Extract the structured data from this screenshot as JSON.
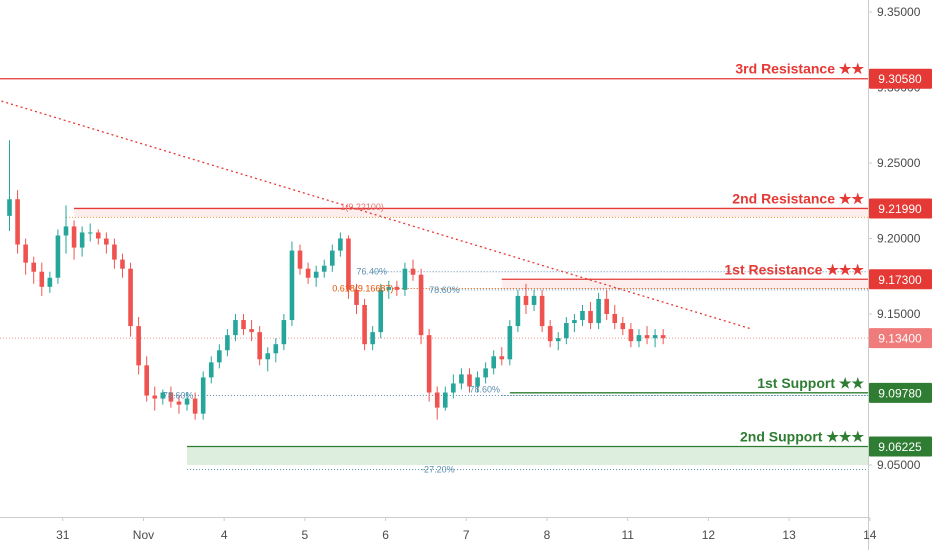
{
  "chart_data": {
    "type": "candlestick",
    "ylim": [
      9.035,
      9.36
    ],
    "grid": false,
    "y_ticks": [
      "9.35000",
      "9.30000",
      "9.25000",
      "9.20000",
      "9.15000",
      "9.10000",
      "9.05000"
    ],
    "x_ticks": [
      {
        "label": "31",
        "index": 4
      },
      {
        "label": "Nov",
        "index": 14
      },
      {
        "label": "4",
        "index": 24
      },
      {
        "label": "5",
        "index": 34
      },
      {
        "label": "6",
        "index": 44
      },
      {
        "label": "7",
        "index": 54
      },
      {
        "label": "8",
        "index": 64
      },
      {
        "label": "11",
        "index": 74
      },
      {
        "label": "12",
        "index": 84
      },
      {
        "label": "13",
        "index": 94
      },
      {
        "label": "14",
        "index": 104
      }
    ],
    "candles": [
      [
        9.215,
        9.265,
        9.205,
        9.226
      ],
      [
        9.226,
        9.232,
        9.19,
        9.196
      ],
      [
        9.196,
        9.2,
        9.176,
        9.184
      ],
      [
        9.184,
        9.188,
        9.17,
        9.178
      ],
      [
        9.178,
        9.184,
        9.162,
        9.168
      ],
      [
        9.168,
        9.178,
        9.164,
        9.174
      ],
      [
        9.174,
        9.206,
        9.17,
        9.202
      ],
      [
        9.202,
        9.222,
        9.19,
        9.208
      ],
      [
        9.208,
        9.212,
        9.186,
        9.194
      ],
      [
        9.194,
        9.208,
        9.188,
        9.204
      ],
      [
        9.204,
        9.21,
        9.198,
        9.204
      ],
      [
        9.204,
        9.206,
        9.196,
        9.2
      ],
      [
        9.2,
        9.204,
        9.19,
        9.196
      ],
      [
        9.196,
        9.2,
        9.18,
        9.186
      ],
      [
        9.186,
        9.19,
        9.174,
        9.18
      ],
      [
        9.18,
        9.184,
        9.135,
        9.142
      ],
      [
        9.142,
        9.148,
        9.11,
        9.116
      ],
      [
        9.116,
        9.122,
        9.092,
        9.096
      ],
      [
        9.096,
        9.102,
        9.086,
        9.094
      ],
      [
        9.094,
        9.1,
        9.09,
        9.098
      ],
      [
        9.098,
        9.102,
        9.088,
        9.092
      ],
      [
        9.092,
        9.096,
        9.084,
        9.09
      ],
      [
        9.09,
        9.098,
        9.086,
        9.094
      ],
      [
        9.094,
        9.098,
        9.08,
        9.084
      ],
      [
        9.084,
        9.112,
        9.08,
        9.108
      ],
      [
        9.108,
        9.122,
        9.104,
        9.118
      ],
      [
        9.118,
        9.13,
        9.114,
        9.126
      ],
      [
        9.126,
        9.14,
        9.122,
        9.136
      ],
      [
        9.136,
        9.15,
        9.132,
        9.146
      ],
      [
        9.146,
        9.15,
        9.136,
        9.14
      ],
      [
        9.14,
        9.146,
        9.132,
        9.138
      ],
      [
        9.138,
        9.142,
        9.116,
        9.12
      ],
      [
        9.12,
        9.128,
        9.112,
        9.124
      ],
      [
        9.124,
        9.134,
        9.118,
        9.13
      ],
      [
        9.13,
        9.15,
        9.126,
        9.146
      ],
      [
        9.146,
        9.198,
        9.142,
        9.192
      ],
      [
        9.192,
        9.196,
        9.176,
        9.18
      ],
      [
        9.18,
        9.184,
        9.17,
        9.174
      ],
      [
        9.174,
        9.182,
        9.168,
        9.178
      ],
      [
        9.178,
        9.186,
        9.174,
        9.182
      ],
      [
        9.182,
        9.196,
        9.178,
        9.192
      ],
      [
        9.192,
        9.204,
        9.188,
        9.2
      ],
      [
        9.2,
        9.202,
        9.16,
        9.166
      ],
      [
        9.166,
        9.17,
        9.15,
        9.156
      ],
      [
        9.156,
        9.16,
        9.126,
        9.13
      ],
      [
        9.13,
        9.142,
        9.126,
        9.138
      ],
      [
        9.138,
        9.17,
        9.134,
        9.166
      ],
      [
        9.166,
        9.172,
        9.16,
        9.168
      ],
      [
        9.168,
        9.172,
        9.162,
        9.166
      ],
      [
        9.166,
        9.184,
        9.162,
        9.18
      ],
      [
        9.18,
        9.186,
        9.172,
        9.176
      ],
      [
        9.176,
        9.18,
        9.13,
        9.136
      ],
      [
        9.136,
        9.14,
        9.092,
        9.098
      ],
      [
        9.098,
        9.102,
        9.08,
        9.088
      ],
      [
        9.088,
        9.102,
        9.086,
        9.098
      ],
      [
        9.098,
        9.11,
        9.094,
        9.104
      ],
      [
        9.104,
        9.114,
        9.1,
        9.11
      ],
      [
        9.11,
        9.114,
        9.098,
        9.102
      ],
      [
        9.102,
        9.112,
        9.098,
        9.108
      ],
      [
        9.108,
        9.118,
        9.104,
        9.114
      ],
      [
        9.114,
        9.126,
        9.11,
        9.122
      ],
      [
        9.122,
        9.128,
        9.116,
        9.12
      ],
      [
        9.12,
        9.146,
        9.116,
        9.142
      ],
      [
        9.142,
        9.166,
        9.138,
        9.162
      ],
      [
        9.162,
        9.17,
        9.15,
        9.156
      ],
      [
        9.156,
        9.166,
        9.152,
        9.162
      ],
      [
        9.162,
        9.166,
        9.138,
        9.142
      ],
      [
        9.142,
        9.146,
        9.128,
        9.132
      ],
      [
        9.132,
        9.138,
        9.126,
        9.134
      ],
      [
        9.134,
        9.148,
        9.13,
        9.144
      ],
      [
        9.144,
        9.15,
        9.138,
        9.146
      ],
      [
        9.146,
        9.156,
        9.142,
        9.152
      ],
      [
        9.152,
        9.158,
        9.14,
        9.144
      ],
      [
        9.144,
        9.164,
        9.14,
        9.16
      ],
      [
        9.16,
        9.166,
        9.146,
        9.15
      ],
      [
        9.15,
        9.156,
        9.14,
        9.144
      ],
      [
        9.144,
        9.148,
        9.136,
        9.14
      ],
      [
        9.14,
        9.144,
        9.128,
        9.132
      ],
      [
        9.132,
        9.14,
        9.128,
        9.136
      ],
      [
        9.136,
        9.142,
        9.13,
        9.134
      ],
      [
        9.134,
        9.14,
        9.128,
        9.136
      ],
      [
        9.136,
        9.14,
        9.13,
        9.134
      ]
    ],
    "levels": [
      {
        "label": "3rd Resistance",
        "stars": "★★",
        "value": "9.30580",
        "price": 9.3058,
        "color": "#e53935",
        "zone": false
      },
      {
        "label": "2nd Resistance",
        "stars": "★★",
        "value": "9.21990",
        "price": 9.2199,
        "color": "#e53935",
        "zone": true,
        "zone_to": 9.214
      },
      {
        "label": "1st Resistance",
        "stars": "★★★",
        "value": "9.17300",
        "price": 9.173,
        "color": "#e53935",
        "zone": true,
        "zone_to": 9.1665
      },
      {
        "label": "1st Support",
        "stars": "★★",
        "value": "9.09780",
        "price": 9.0978,
        "color": "#2e7d32",
        "zone": false
      },
      {
        "label": "2nd Support",
        "stars": "★★★",
        "value": "9.06225",
        "price": 9.06225,
        "color": "#2e7d32",
        "zone": true,
        "zone_to": 9.05
      }
    ],
    "current_price": {
      "value": "9.13400",
      "price": 9.134,
      "color": "#ef7b7b"
    },
    "fib_labels": [
      {
        "text": "1(9.22100)",
        "price": 9.221,
        "color": "#e57373"
      },
      {
        "text": "0.618(9.16687)",
        "price": 9.16687,
        "color": "#e65100"
      },
      {
        "text": "76.40%",
        "price": 9.178,
        "color": "#5b8fb0"
      },
      {
        "text": "78.60%",
        "price": 9.166,
        "color": "#5b8fb0"
      },
      {
        "text": "78.60%",
        "price": 9.096,
        "color": "#5b8fb0"
      },
      {
        "text": "78.60%",
        "price": 9.1,
        "color": "#5b8fb0"
      },
      {
        "text": "-27.20%",
        "price": 9.047,
        "color": "#5b8fb0"
      }
    ],
    "trendline": {
      "start": [
        -1,
        9.291
      ],
      "end": [
        92,
        9.14
      ],
      "color": "#e53935",
      "style": "dotted"
    },
    "colors": {
      "bull": "#26a69a",
      "bear": "#ef5350",
      "axis": "#cccccc"
    }
  }
}
